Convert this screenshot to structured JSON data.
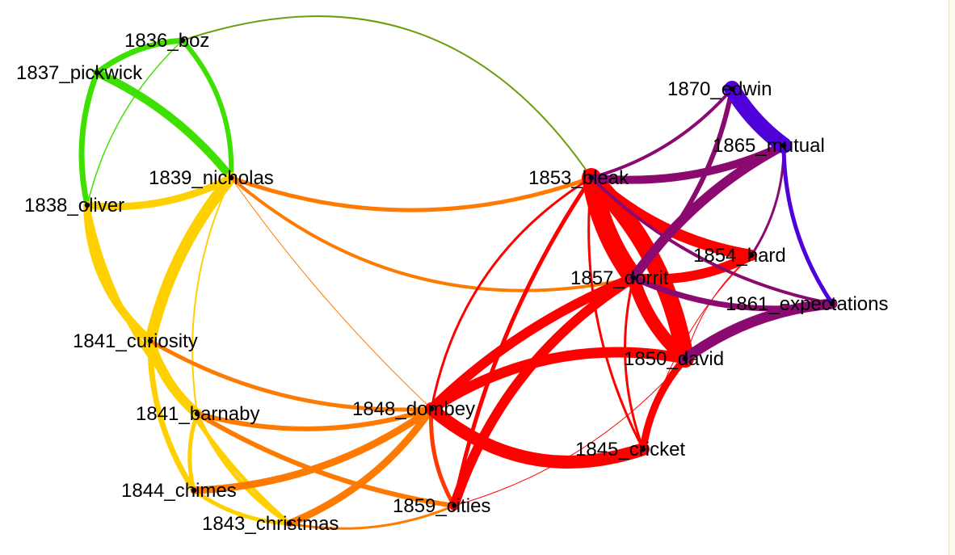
{
  "graph": {
    "nodes": [
      {
        "id": "boz",
        "label": "1836_boz"
      },
      {
        "id": "pickwick",
        "label": "1837_pickwick"
      },
      {
        "id": "oliver",
        "label": "1838_oliver"
      },
      {
        "id": "nicholas",
        "label": "1839_nicholas"
      },
      {
        "id": "curiosity",
        "label": "1841_curiosity"
      },
      {
        "id": "barnaby",
        "label": "1841_barnaby"
      },
      {
        "id": "chimes",
        "label": "1844_chimes"
      },
      {
        "id": "christmas",
        "label": "1843_christmas"
      },
      {
        "id": "dombey",
        "label": "1848_dombey"
      },
      {
        "id": "cities",
        "label": "1859_cities"
      },
      {
        "id": "cricket",
        "label": "1845_cricket"
      },
      {
        "id": "david",
        "label": "1850_david"
      },
      {
        "id": "dorrit",
        "label": "1857_dorrit"
      },
      {
        "id": "hard",
        "label": "1854_hard"
      },
      {
        "id": "expectations",
        "label": "1861_expectations"
      },
      {
        "id": "bleak",
        "label": "1853_bleak"
      },
      {
        "id": "mutual",
        "label": "1865_mutual"
      },
      {
        "id": "edwin",
        "label": "1870_edwin"
      }
    ],
    "edges": [
      {
        "s": "boz",
        "t": "pickwick",
        "w": 7,
        "color": "#3ee000"
      },
      {
        "s": "boz",
        "t": "nicholas",
        "w": 6,
        "color": "#3ee000"
      },
      {
        "s": "pickwick",
        "t": "nicholas",
        "w": 10,
        "color": "#3ee000"
      },
      {
        "s": "pickwick",
        "t": "oliver",
        "w": 7,
        "color": "#3ee000"
      },
      {
        "s": "boz",
        "t": "oliver",
        "w": 1.5,
        "color": "#3ee000"
      },
      {
        "s": "boz",
        "t": "bleak",
        "w": 2,
        "color": "#6b9e10"
      },
      {
        "s": "oliver",
        "t": "nicholas",
        "w": 9,
        "color": "#ffd000"
      },
      {
        "s": "oliver",
        "t": "curiosity",
        "w": 10,
        "color": "#ffd000"
      },
      {
        "s": "nicholas",
        "t": "curiosity",
        "w": 14,
        "color": "#ffd000"
      },
      {
        "s": "oliver",
        "t": "barnaby",
        "w": 6,
        "color": "#ffd000"
      },
      {
        "s": "nicholas",
        "t": "barnaby",
        "w": 2,
        "color": "#ffd000"
      },
      {
        "s": "curiosity",
        "t": "barnaby",
        "w": 12,
        "color": "#ffd000"
      },
      {
        "s": "curiosity",
        "t": "chimes",
        "w": 7,
        "color": "#ffd000"
      },
      {
        "s": "curiosity",
        "t": "christmas",
        "w": 5,
        "color": "#ffd000"
      },
      {
        "s": "barnaby",
        "t": "chimes",
        "w": 5,
        "color": "#ffd000"
      },
      {
        "s": "barnaby",
        "t": "christmas",
        "w": 5,
        "color": "#ffd000"
      },
      {
        "s": "chimes",
        "t": "christmas",
        "w": 5,
        "color": "#ffd000"
      },
      {
        "s": "nicholas",
        "t": "bleak",
        "w": 5,
        "color": "#ff7a00"
      },
      {
        "s": "nicholas",
        "t": "dorrit",
        "w": 4,
        "color": "#ff7a00"
      },
      {
        "s": "nicholas",
        "t": "dombey",
        "w": 1,
        "color": "#ff7a00"
      },
      {
        "s": "curiosity",
        "t": "dombey",
        "w": 5,
        "color": "#ff7a00"
      },
      {
        "s": "barnaby",
        "t": "dombey",
        "w": 6,
        "color": "#ff7a00"
      },
      {
        "s": "chimes",
        "t": "dombey",
        "w": 9,
        "color": "#ff7a00"
      },
      {
        "s": "christmas",
        "t": "dombey",
        "w": 9,
        "color": "#ff7a00"
      },
      {
        "s": "barnaby",
        "t": "cities",
        "w": 6,
        "color": "#ff7a00"
      },
      {
        "s": "christmas",
        "t": "cities",
        "w": 3,
        "color": "#ff7a00"
      },
      {
        "s": "dombey",
        "t": "cities",
        "w": 5,
        "color": "#ff3a00"
      },
      {
        "s": "dombey",
        "t": "bleak",
        "w": 3,
        "color": "#ff0000"
      },
      {
        "s": "dombey",
        "t": "dorrit",
        "w": 12,
        "color": "#ff0000"
      },
      {
        "s": "dombey",
        "t": "david",
        "w": 13,
        "color": "#ff0000"
      },
      {
        "s": "dombey",
        "t": "cricket",
        "w": 16,
        "color": "#ff0000"
      },
      {
        "s": "cities",
        "t": "dorrit",
        "w": 12,
        "color": "#ff0000"
      },
      {
        "s": "cities",
        "t": "david",
        "w": 1,
        "color": "#ff0000"
      },
      {
        "s": "cities",
        "t": "bleak",
        "w": 5,
        "color": "#ff0000"
      },
      {
        "s": "bleak",
        "t": "dorrit",
        "w": 24,
        "color": "#ff0000"
      },
      {
        "s": "bleak",
        "t": "david",
        "w": 22,
        "color": "#ff0000"
      },
      {
        "s": "bleak",
        "t": "hard",
        "w": 14,
        "color": "#ff0000"
      },
      {
        "s": "bleak",
        "t": "cricket",
        "w": 3,
        "color": "#ff0000"
      },
      {
        "s": "dorrit",
        "t": "david",
        "w": 16,
        "color": "#ff0000"
      },
      {
        "s": "dorrit",
        "t": "hard",
        "w": 12,
        "color": "#ff0000"
      },
      {
        "s": "dorrit",
        "t": "cricket",
        "w": 3,
        "color": "#ff0000"
      },
      {
        "s": "david",
        "t": "cricket",
        "w": 9,
        "color": "#ff0000"
      },
      {
        "s": "hard",
        "t": "cricket",
        "w": 1,
        "color": "#ff0000"
      },
      {
        "s": "hard",
        "t": "david",
        "w": 1,
        "color": "#ff0000"
      },
      {
        "s": "bleak",
        "t": "mutual",
        "w": 10,
        "color": "#8b0a70"
      },
      {
        "s": "bleak",
        "t": "edwin",
        "w": 4,
        "color": "#8b0a70"
      },
      {
        "s": "dorrit",
        "t": "mutual",
        "w": 12,
        "color": "#8b0a70"
      },
      {
        "s": "dorrit",
        "t": "edwin",
        "w": 6,
        "color": "#8b0a70"
      },
      {
        "s": "dorrit",
        "t": "expectations",
        "w": 7,
        "color": "#8b0a70"
      },
      {
        "s": "hard",
        "t": "mutual",
        "w": 3,
        "color": "#8b0a70"
      },
      {
        "s": "david",
        "t": "expectations",
        "w": 13,
        "color": "#8b0a70"
      },
      {
        "s": "bleak",
        "t": "expectations",
        "w": 4,
        "color": "#8b0a70"
      },
      {
        "s": "edwin",
        "t": "mutual",
        "w": 20,
        "color": "#5000d8"
      },
      {
        "s": "mutual",
        "t": "expectations",
        "w": 5,
        "color": "#5000d8"
      }
    ]
  }
}
